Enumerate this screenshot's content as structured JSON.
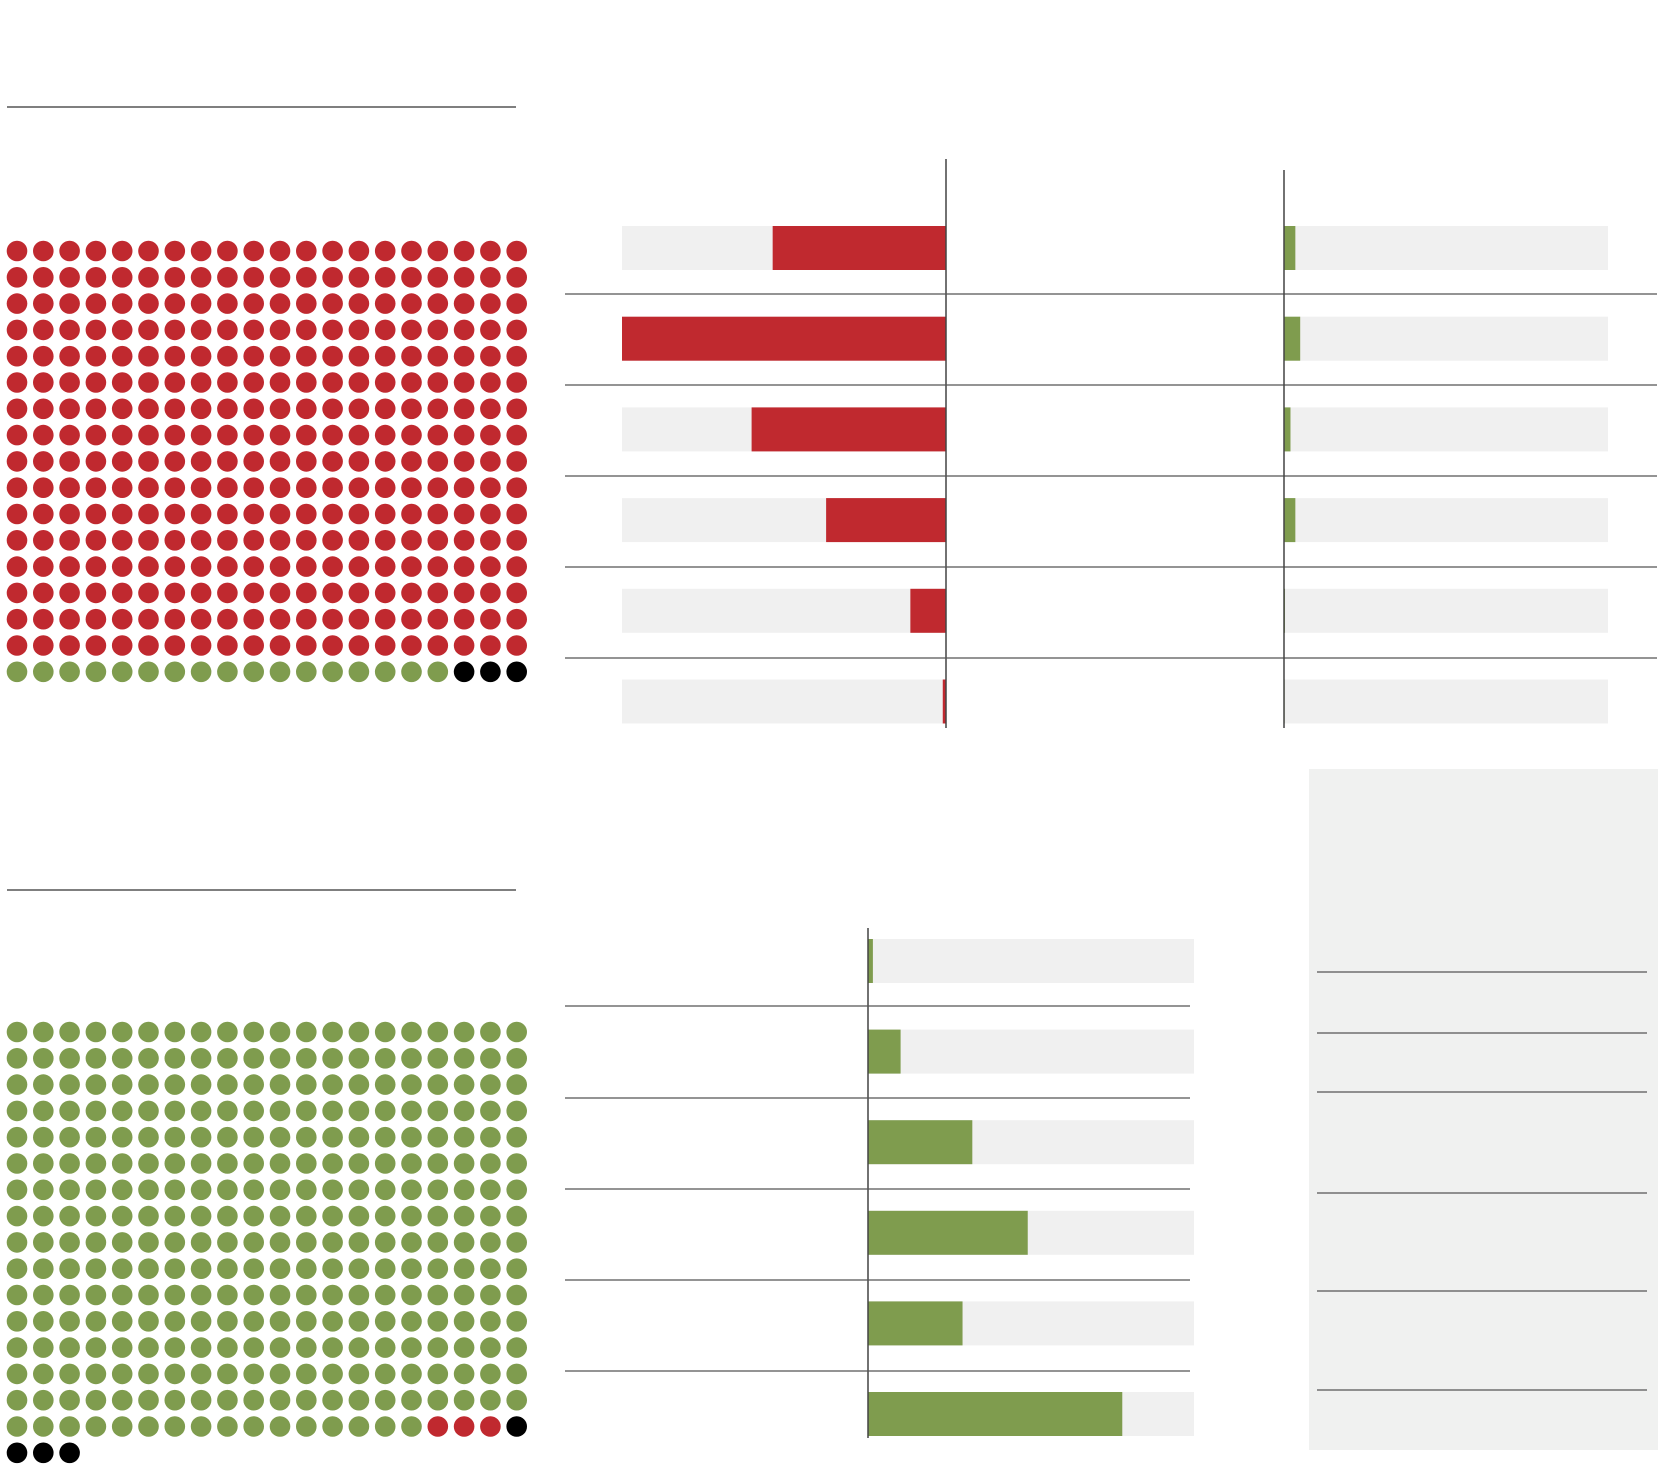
{
  "colors": {
    "red": "#c0292f",
    "green": "#7f9c4e",
    "black": "#000000",
    "track": "#f0f0f0",
    "axis": "#444444",
    "rule": "#555555",
    "panel": "#f0f1f0"
  },
  "chart_data": [
    {
      "type": "waffle",
      "categories": [
        "red",
        "green",
        "black"
      ],
      "values": [
        320,
        17,
        3
      ],
      "columns": 20
    },
    {
      "type": "waffle",
      "categories": [
        "green",
        "red",
        "black"
      ],
      "values": [
        316,
        3,
        4
      ],
      "columns": 20
    },
    {
      "type": "bar",
      "orientation": "horizontal",
      "direction": "left",
      "series": [
        {
          "values": [
            0.535,
            1.0,
            0.6,
            0.37,
            0.11,
            0.01
          ]
        }
      ],
      "xlim": [
        0,
        1
      ]
    },
    {
      "type": "bar",
      "orientation": "horizontal",
      "direction": "right",
      "series": [
        {
          "values": [
            0.035,
            0.05,
            0.02,
            0.035,
            0.003,
            0.002
          ]
        }
      ],
      "xlim": [
        0,
        1
      ]
    },
    {
      "type": "bar",
      "orientation": "horizontal",
      "direction": "right",
      "series": [
        {
          "values": [
            0.015,
            0.1,
            0.32,
            0.49,
            0.29,
            0.78
          ]
        }
      ],
      "xlim": [
        0,
        1
      ]
    }
  ]
}
